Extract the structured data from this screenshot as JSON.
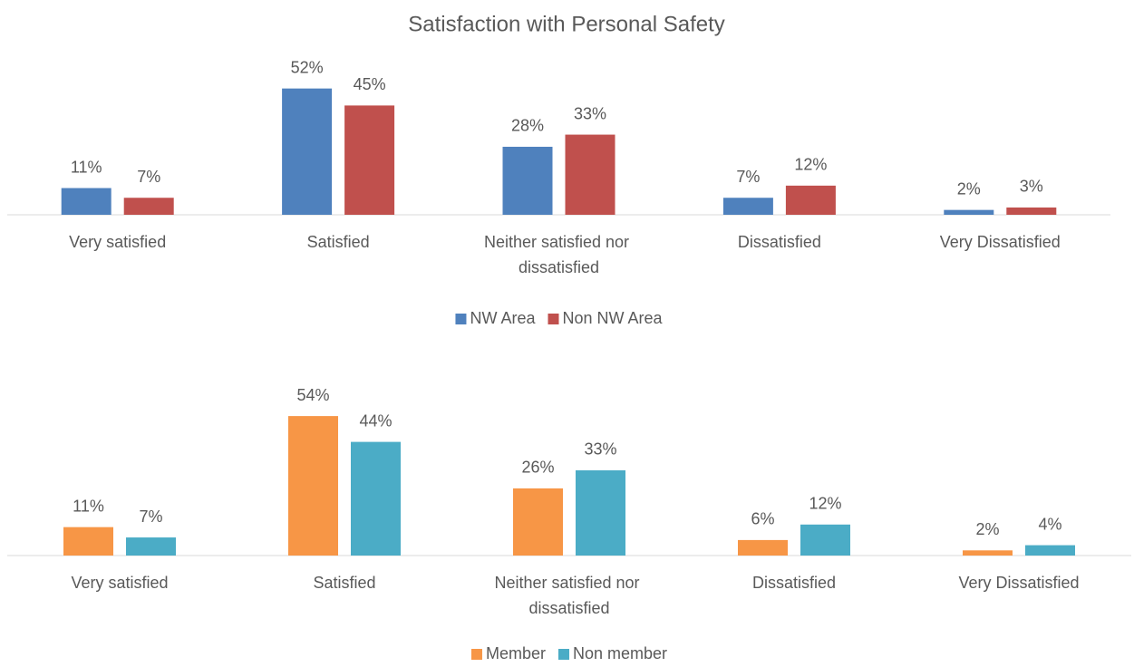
{
  "chart_data": [
    {
      "type": "bar",
      "title": "Satisfaction with Personal Safety",
      "categories": [
        "Very satisfied",
        "Satisfied",
        "Neither satisfied nor dissatisfied",
        "Dissatisfied",
        "Very Dissatisfied"
      ],
      "series": [
        {
          "name": "NW Area",
          "color": "#4f81bd",
          "values": [
            11,
            52,
            28,
            7,
            2
          ],
          "value_labels": [
            "11%",
            "52%",
            "28%",
            "7%",
            "2%"
          ]
        },
        {
          "name": "Non NW Area",
          "color": "#c0504d",
          "values": [
            7,
            45,
            33,
            12,
            3
          ],
          "value_labels": [
            "7%",
            "45%",
            "33%",
            "12%",
            "3%"
          ]
        }
      ],
      "legend": "bottom"
    },
    {
      "type": "bar",
      "categories": [
        "Very satisfied",
        "Satisfied",
        "Neither satisfied nor dissatisfied",
        "Dissatisfied",
        "Very Dissatisfied"
      ],
      "series": [
        {
          "name": "Member",
          "color": "#f79646",
          "values": [
            11,
            54,
            26,
            6,
            2
          ],
          "value_labels": [
            "11%",
            "54%",
            "26%",
            "6%",
            "2%"
          ]
        },
        {
          "name": "Non member",
          "color": "#4bacc6",
          "values": [
            7,
            44,
            33,
            12,
            4
          ],
          "value_labels": [
            "7%",
            "44%",
            "33%",
            "12%",
            "4%"
          ]
        }
      ],
      "legend": "bottom"
    }
  ]
}
